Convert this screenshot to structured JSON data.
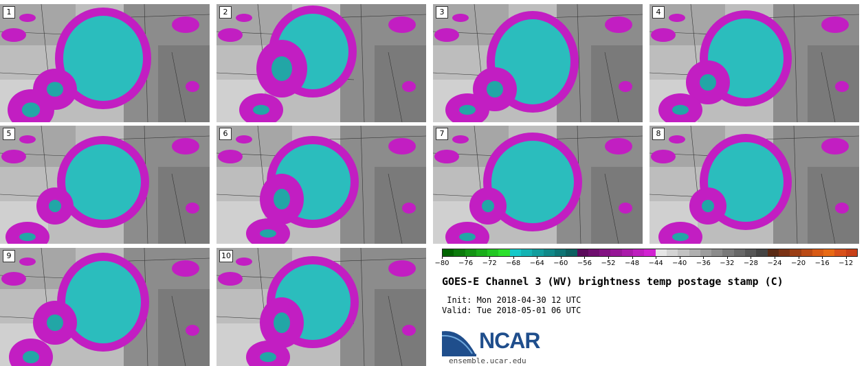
{
  "chart_data": {
    "type": "heatmap",
    "title": "GOES-E Channel 3 (WV) brightness temp postage stamp (C)",
    "init": " Init: Mon 2018-04-30 12 UTC",
    "valid": "Valid: Tue 2018-05-01 06 UTC",
    "units": "C",
    "panels": [
      "1",
      "2",
      "3",
      "4",
      "5",
      "6",
      "7",
      "8",
      "9",
      "10"
    ],
    "colorbar": {
      "range": [
        -80,
        -10
      ],
      "ticks": [
        "−80",
        "−76",
        "−72",
        "−68",
        "−64",
        "−60",
        "−56",
        "−52",
        "−48",
        "−44",
        "−40",
        "−36",
        "−32",
        "−28",
        "−24",
        "−20",
        "−16",
        "−12"
      ],
      "tick_values": [
        -80,
        -76,
        -72,
        -68,
        -64,
        -60,
        -56,
        -52,
        -48,
        -44,
        -40,
        -36,
        -32,
        -28,
        -24,
        -20,
        -16,
        -12
      ],
      "colors": [
        "#006400",
        "#0b7a0b",
        "#139313",
        "#1aad1a",
        "#22c622",
        "#2be02b",
        "#16c9c9",
        "#14b3b3",
        "#129d9d",
        "#108888",
        "#0e7474",
        "#0c6060",
        "#5a0a5a",
        "#6e0e6e",
        "#821282",
        "#961696",
        "#aa1aaa",
        "#be1ebe",
        "#d222d2",
        "#e6e6e6",
        "#d4d4d4",
        "#c2c2c2",
        "#b0b0b0",
        "#9e9e9e",
        "#8c8c8c",
        "#7a7a7a",
        "#686868",
        "#565656",
        "#444444",
        "#5a2a14",
        "#7a3214",
        "#9a3e14",
        "#ba4a14",
        "#d85a14",
        "#e86a14",
        "#d8501a",
        "#c84018"
      ]
    }
  },
  "branding": {
    "logo_text": "NCAR",
    "url": "ensemble.ucar.edu"
  }
}
